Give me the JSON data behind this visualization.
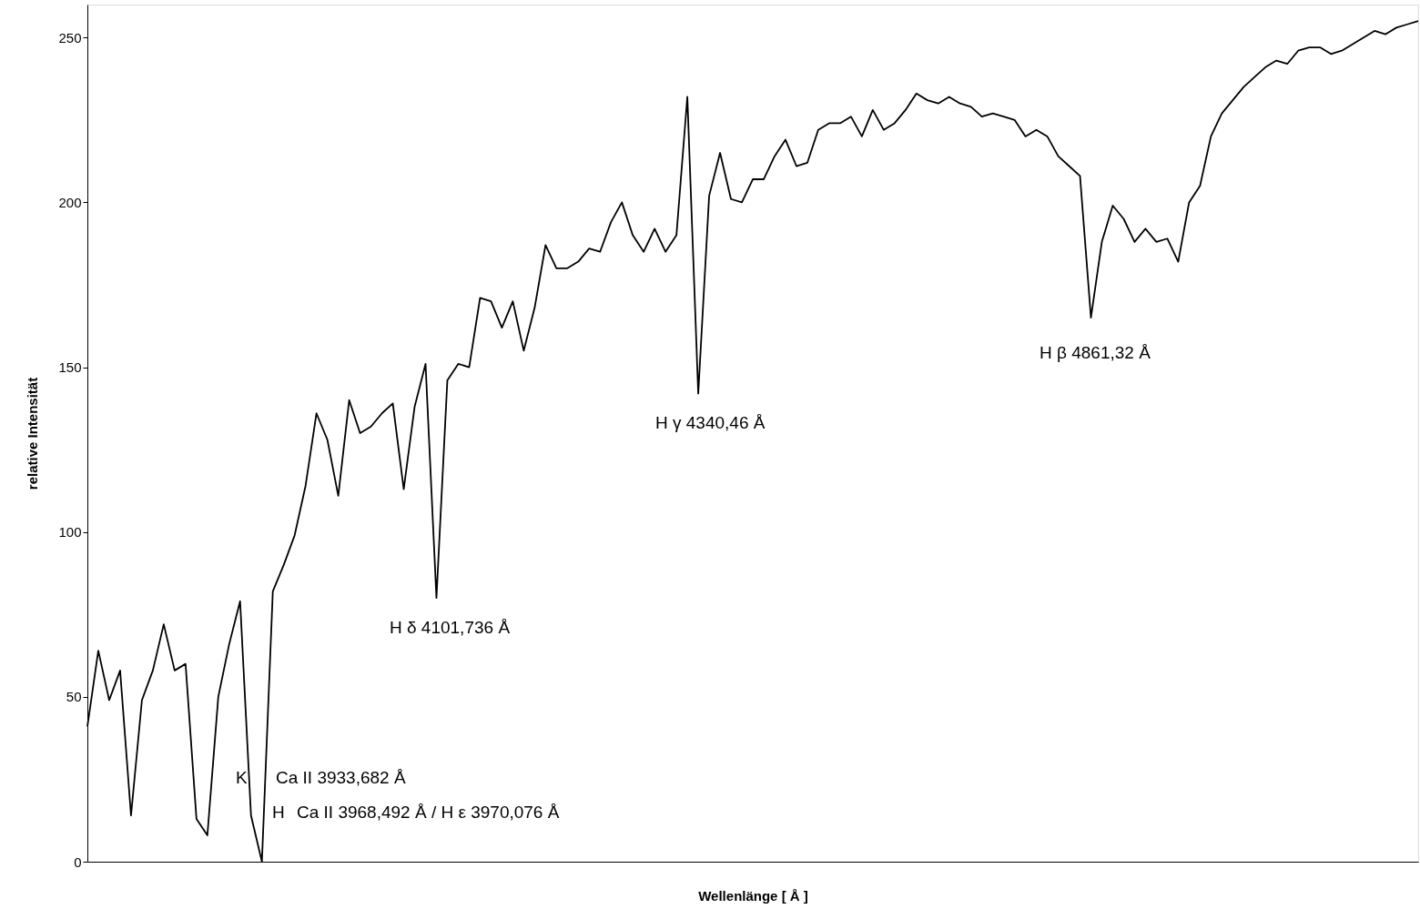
{
  "chart_data": {
    "type": "line",
    "xlabel": "Wellenlänge [ Å ]",
    "ylabel": "relative Intensität",
    "categories": [
      null,
      null,
      null,
      null,
      null,
      null,
      null,
      null,
      null,
      null,
      null,
      null,
      null,
      null,
      null,
      null,
      null,
      null,
      null,
      null,
      null,
      null,
      null,
      null,
      null,
      null,
      null,
      null,
      null,
      null,
      null,
      null,
      null,
      null,
      null,
      null,
      null,
      null,
      null,
      null,
      null,
      null,
      null,
      null,
      null,
      null,
      null,
      null,
      null,
      null,
      null,
      null,
      null,
      null,
      null,
      null,
      null,
      null,
      null,
      null,
      null,
      null,
      null,
      null,
      null,
      null,
      null,
      null,
      null,
      null,
      null,
      null,
      null,
      null,
      null,
      null,
      null,
      null,
      null,
      null,
      null,
      null,
      null,
      null,
      null,
      null,
      null,
      null,
      null,
      null,
      null,
      null,
      null,
      null,
      null,
      null,
      null,
      null,
      null,
      null,
      null,
      null,
      null,
      null,
      null,
      null,
      null,
      null,
      null,
      null,
      null,
      null,
      null,
      null,
      null,
      null,
      null,
      null,
      null,
      null,
      null,
      null,
      null
    ],
    "series": [
      {
        "color": "#000000",
        "values": [
          41,
          64,
          49,
          58,
          14,
          49,
          58,
          72,
          58,
          60,
          13,
          8,
          50,
          66,
          79,
          14,
          0,
          82,
          90,
          99,
          114,
          136,
          128,
          111,
          140,
          130,
          132,
          136,
          139,
          113,
          138,
          151,
          80,
          146,
          151,
          150,
          171,
          170,
          162,
          170,
          155,
          168,
          187,
          180,
          180,
          182,
          186,
          185,
          194,
          200,
          190,
          185,
          192,
          185,
          190,
          232,
          142,
          202,
          215,
          201,
          200,
          207,
          207,
          214,
          219,
          211,
          212,
          222,
          224,
          224,
          226,
          220,
          228,
          222,
          224,
          228,
          233,
          231,
          230,
          232,
          230,
          229,
          226,
          227,
          226,
          225,
          220,
          222,
          220,
          214,
          211,
          208,
          165,
          188,
          199,
          195,
          188,
          192,
          188,
          189,
          182,
          200,
          205,
          220,
          227,
          231,
          235,
          238,
          241,
          243,
          242,
          246,
          247,
          247,
          245,
          246,
          248,
          250,
          252,
          251,
          253,
          254,
          255
        ]
      }
    ],
    "ylim": [
      0,
      260
    ],
    "yticks": [
      0,
      50,
      100,
      150,
      200,
      250
    ],
    "tick_labels": "y",
    "grid": false,
    "marker": "none",
    "line_style": "solid",
    "annotations": [
      "K",
      "Ca II 3933,682 Å",
      "H",
      "Ca II 3968,492 Å / H ε 3970,076 Å",
      "H δ 4101,736 Å",
      "H γ 4340,46 Å",
      "H β 4861,32 Å"
    ]
  }
}
